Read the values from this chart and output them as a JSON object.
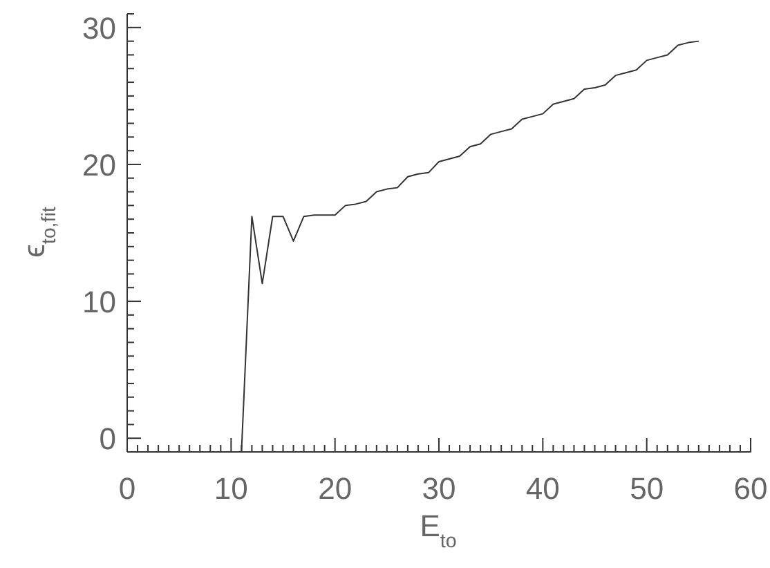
{
  "chart_data": {
    "type": "line",
    "xlabel": "E$_{to}$",
    "ylabel": "ϵ$_{to,fit}$",
    "x": [
      11,
      12,
      13,
      14,
      15,
      16,
      17,
      18,
      19,
      20,
      21,
      22,
      23,
      24,
      25,
      26,
      27,
      28,
      29,
      30,
      31,
      32,
      33,
      34,
      35,
      36,
      37,
      38,
      39,
      40,
      41,
      42,
      43,
      44,
      45,
      46,
      47,
      48,
      49,
      50,
      51,
      52,
      53,
      54,
      55
    ],
    "series": [
      {
        "color": "#333333",
        "values": [
          -1,
          16.2,
          11.3,
          16.2,
          16.2,
          14.4,
          16.2,
          16.3,
          16.3,
          16.3,
          17.0,
          17.1,
          17.3,
          18.0,
          18.2,
          18.3,
          19.1,
          19.3,
          19.4,
          20.2,
          20.4,
          20.6,
          21.3,
          21.5,
          22.2,
          22.4,
          22.6,
          23.3,
          23.5,
          23.7,
          24.4,
          24.6,
          24.8,
          25.5,
          25.6,
          25.8,
          26.5,
          26.7,
          26.9,
          27.6,
          27.8,
          28.0,
          28.7,
          28.9,
          29.0
        ]
      }
    ],
    "xlim": [
      0,
      60
    ],
    "ylim": [
      -1,
      31
    ],
    "xticks": [
      0,
      {
        "value": 1,
        "label": null
      },
      {
        "value": 2,
        "label": null
      },
      {
        "value": 3,
        "label": null
      },
      {
        "value": 4,
        "label": null
      },
      {
        "value": 5,
        "label": null
      },
      {
        "value": 6,
        "label": null
      },
      {
        "value": 7,
        "label": null
      },
      {
        "value": 8,
        "label": null
      },
      {
        "value": 9,
        "label": null
      },
      10,
      {
        "value": 11,
        "label": null
      },
      {
        "value": 12,
        "label": null
      },
      {
        "value": 13,
        "label": null
      },
      {
        "value": 14,
        "label": null
      },
      {
        "value": 15,
        "label": null
      },
      {
        "value": 16,
        "label": null
      },
      {
        "value": 17,
        "label": null
      },
      {
        "value": 18,
        "label": null
      },
      {
        "value": 19,
        "label": null
      },
      20,
      {
        "value": 21,
        "label": null
      },
      {
        "value": 22,
        "label": null
      },
      {
        "value": 23,
        "label": null
      },
      {
        "value": 24,
        "label": null
      },
      {
        "value": 25,
        "label": null
      },
      {
        "value": 26,
        "label": null
      },
      {
        "value": 27,
        "label": null
      },
      {
        "value": 28,
        "label": null
      },
      {
        "value": 29,
        "label": null
      },
      30,
      {
        "value": 31,
        "label": null
      },
      {
        "value": 32,
        "label": null
      },
      {
        "value": 33,
        "label": null
      },
      {
        "value": 34,
        "label": null
      },
      {
        "value": 35,
        "label": null
      },
      {
        "value": 36,
        "label": null
      },
      {
        "value": 37,
        "label": null
      },
      {
        "value": 38,
        "label": null
      },
      {
        "value": 39,
        "label": null
      },
      40,
      {
        "value": 41,
        "label": null
      },
      {
        "value": 42,
        "label": null
      },
      {
        "value": 43,
        "label": null
      },
      {
        "value": 44,
        "label": null
      },
      {
        "value": 45,
        "label": null
      },
      {
        "value": 46,
        "label": null
      },
      {
        "value": 47,
        "label": null
      },
      {
        "value": 48,
        "label": null
      },
      {
        "value": 49,
        "label": null
      },
      50,
      {
        "value": 51,
        "label": null
      },
      {
        "value": 52,
        "label": null
      },
      {
        "value": 53,
        "label": null
      },
      {
        "value": 54,
        "label": null
      },
      {
        "value": 55,
        "label": null
      },
      {
        "value": 56,
        "label": null
      },
      {
        "value": 57,
        "label": null
      },
      {
        "value": 58,
        "label": null
      },
      {
        "value": 59,
        "label": null
      },
      60
    ],
    "yticks": [
      {
        "value": -1,
        "label": null
      },
      0,
      {
        "value": 1,
        "label": null
      },
      {
        "value": 2,
        "label": null
      },
      {
        "value": 3,
        "label": null
      },
      {
        "value": 4,
        "label": null
      },
      {
        "value": 5,
        "label": null
      },
      {
        "value": 6,
        "label": null
      },
      {
        "value": 7,
        "label": null
      },
      {
        "value": 8,
        "label": null
      },
      {
        "value": 9,
        "label": null
      },
      10,
      {
        "value": 11,
        "label": null
      },
      {
        "value": 12,
        "label": null
      },
      {
        "value": 13,
        "label": null
      },
      {
        "value": 14,
        "label": null
      },
      {
        "value": 15,
        "label": null
      },
      {
        "value": 16,
        "label": null
      },
      {
        "value": 17,
        "label": null
      },
      {
        "value": 18,
        "label": null
      },
      {
        "value": 19,
        "label": null
      },
      20,
      {
        "value": 21,
        "label": null
      },
      {
        "value": 22,
        "label": null
      },
      {
        "value": 23,
        "label": null
      },
      {
        "value": 24,
        "label": null
      },
      {
        "value": 25,
        "label": null
      },
      {
        "value": 26,
        "label": null
      },
      {
        "value": 27,
        "label": null
      },
      {
        "value": 28,
        "label": null
      },
      {
        "value": 29,
        "label": null
      },
      30,
      {
        "value": 31,
        "label": null
      }
    ],
    "marker": "none",
    "line_style": "solid",
    "grid": false,
    "legend": false
  }
}
